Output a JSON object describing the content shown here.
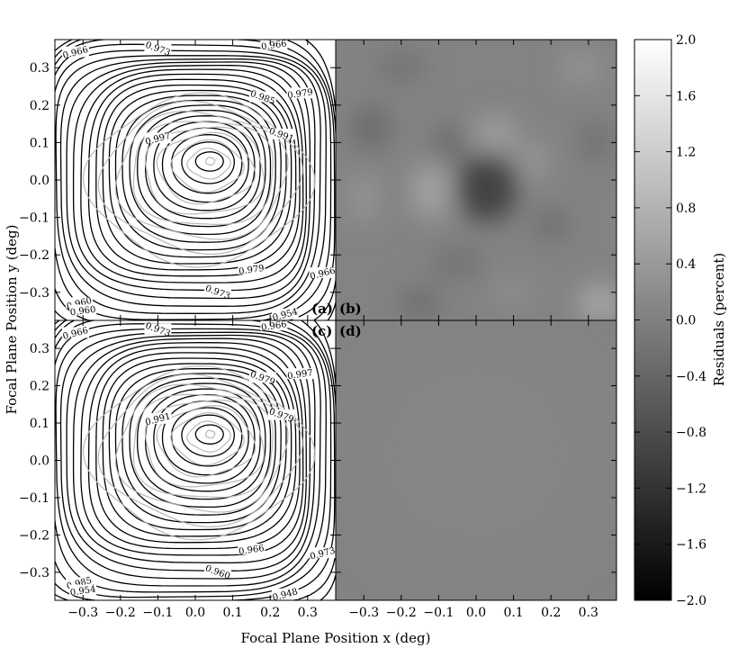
{
  "chart_data": {
    "type": "contour",
    "layout": "2x2 panels: (a),(c) contour maps; (b),(d) grayscale residual maps",
    "xlabel": "Focal Plane Position x (deg)",
    "ylabel": "Focal Plane Position y (deg)",
    "xlim": [
      -0.375,
      0.375
    ],
    "ylim": [
      -0.375,
      0.375
    ],
    "x_ticks": [
      "−0.3",
      "−0.2",
      "−0.1",
      "0.0",
      "0.1",
      "0.2",
      "0.3"
    ],
    "y_ticks": [
      "0.3",
      "0.2",
      "0.1",
      "0.0",
      "−0.1",
      "−0.2",
      "−0.3"
    ],
    "panels": [
      {
        "letter": "(a)",
        "kind": "contour",
        "peak": [
          0.04,
          0.05
        ],
        "labels": [
          "0.966",
          "0.973",
          "0.966",
          "0.960",
          "0.985",
          "0.979",
          "0.997",
          "0.991",
          "0.979",
          "0.966",
          "0.973",
          "0.960",
          "0.954"
        ]
      },
      {
        "letter": "(b)",
        "kind": "residual-map"
      },
      {
        "letter": "(c)",
        "kind": "contour",
        "peak": [
          0.04,
          0.07
        ],
        "labels": [
          "0.966",
          "0.973",
          "0.966",
          "0.985",
          "0.979",
          "0.997",
          "0.991",
          "0.979",
          "0.966",
          "0.973",
          "0.960",
          "0.954",
          "0.948"
        ]
      },
      {
        "letter": "(d)",
        "kind": "residual-map"
      }
    ],
    "colorbar": {
      "label": "Residuals (percent)",
      "range": [
        -2.0,
        2.0
      ],
      "ticks": [
        "2.0",
        "1.6",
        "1.2",
        "0.8",
        "0.4",
        "0.0",
        "−0.4",
        "−0.8",
        "−1.2",
        "−1.6",
        "−2.0"
      ],
      "colormap": "gray"
    }
  }
}
